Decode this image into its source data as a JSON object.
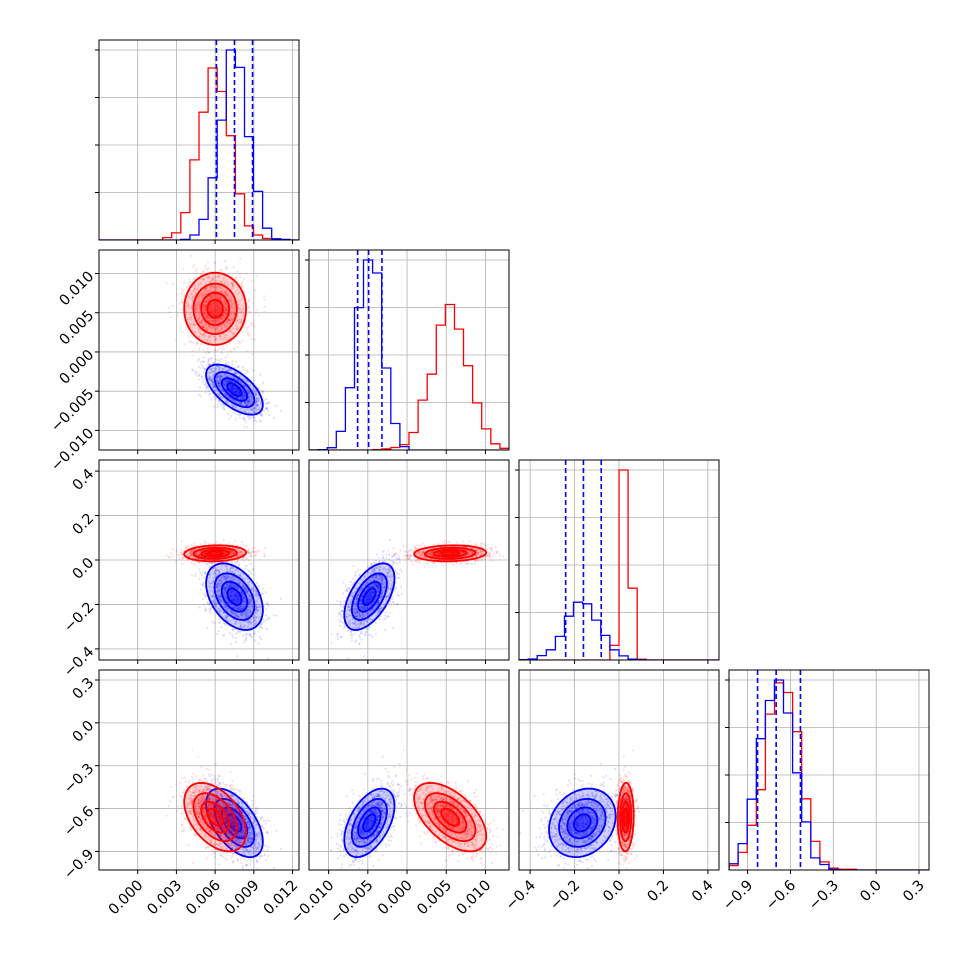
{
  "chart_data": {
    "type": "corner",
    "grid": true,
    "axis_ranges": {
      "p0": [
        -0.003,
        0.0125
      ],
      "p1": [
        -0.0125,
        0.013
      ],
      "p2": [
        -0.45,
        0.45
      ],
      "p3": [
        -1.03,
        0.37
      ]
    },
    "axis_ticks": {
      "p0": [
        "0.000",
        "0.003",
        "0.006",
        "0.009",
        "0.012"
      ],
      "p1": [
        "−0.010",
        "−0.005",
        "0.000",
        "0.005",
        "0.010"
      ],
      "p2": [
        "−0.4",
        "−0.2",
        "0.0",
        "0.2",
        "0.4"
      ],
      "p2_y": [
        "−0.4",
        "−0.2",
        "0.0",
        "0.2",
        "0.4"
      ],
      "p3": [
        "−0.9",
        "−0.6",
        "−0.3",
        "0.0",
        "0.3"
      ],
      "p3_y": [
        "−0.9",
        "−0.6",
        "−0.3",
        "0.0",
        "0.3"
      ]
    },
    "series": [
      {
        "color": "#0000ff",
        "means": [
          0.0075,
          -0.0048,
          -0.165,
          -0.7
        ],
        "stds": [
          0.0011,
          0.0016,
          0.075,
          0.12
        ],
        "corr": [
          [
            1.0,
            -0.6,
            -0.4,
            -0.55
          ],
          [
            -0.6,
            1.0,
            0.55,
            0.5
          ],
          [
            -0.4,
            0.55,
            1.0,
            0.2
          ],
          [
            -0.55,
            0.5,
            0.2,
            1.0
          ]
        ],
        "quantiles": [
          [
            0.0061,
            0.0075,
            0.0089
          ],
          [
            -0.0063,
            -0.0049,
            -0.0032
          ],
          [
            -0.24,
            -0.16,
            -0.08
          ],
          [
            -0.83,
            -0.7,
            -0.53
          ]
        ]
      },
      {
        "color": "#ff0000",
        "means": [
          0.006,
          0.0055,
          0.03,
          -0.66
        ],
        "stds": [
          0.0012,
          0.0023,
          0.018,
          0.12
        ],
        "corr": [
          [
            1.0,
            0.0,
            0.1,
            -0.45
          ],
          [
            0.0,
            1.0,
            0.1,
            -0.55
          ],
          [
            0.1,
            0.1,
            1.0,
            0.05
          ],
          [
            -0.45,
            -0.55,
            0.05,
            1.0
          ]
        ],
        "quantiles": null
      }
    ]
  }
}
